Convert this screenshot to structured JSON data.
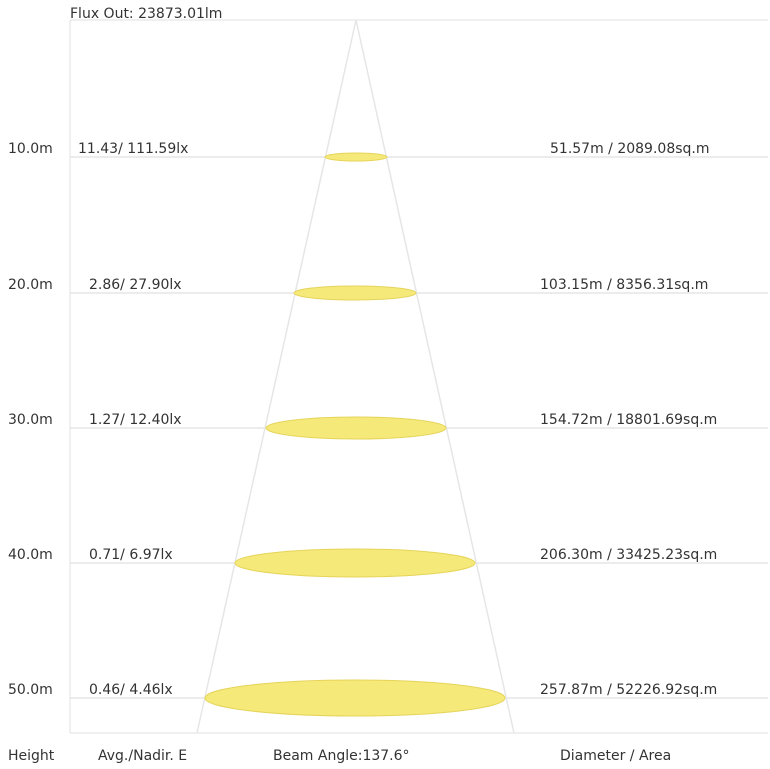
{
  "flux_label": "Flux Out: 23873.01lm",
  "rows": [
    {
      "height": "10.0m",
      "illuminance": "11.43/ 111.59lx",
      "diameter_area": "51.57m / 2089.08sq.m"
    },
    {
      "height": "20.0m",
      "illuminance": "2.86/ 27.90lx",
      "diameter_area": "103.15m / 8356.31sq.m"
    },
    {
      "height": "30.0m",
      "illuminance": "1.27/ 12.40lx",
      "diameter_area": "154.72m / 18801.69sq.m"
    },
    {
      "height": "40.0m",
      "illuminance": "0.71/ 6.97lx",
      "diameter_area": "206.30m / 33425.23sq.m"
    },
    {
      "height": "50.0m",
      "illuminance": "0.46/ 4.46lx",
      "diameter_area": "257.87m / 52226.92sq.m"
    }
  ],
  "footer": {
    "height": "Height",
    "avg_nadir": "Avg./Nadir. E",
    "beam_angle": "Beam Angle:137.6°",
    "diameter_area": "Diameter / Area"
  },
  "colors": {
    "spot_fill": "#f5e97a",
    "spot_stroke": "#e6d45a",
    "grid_line": "#d8d8d8",
    "cone_line": "#e6e6e6"
  }
}
